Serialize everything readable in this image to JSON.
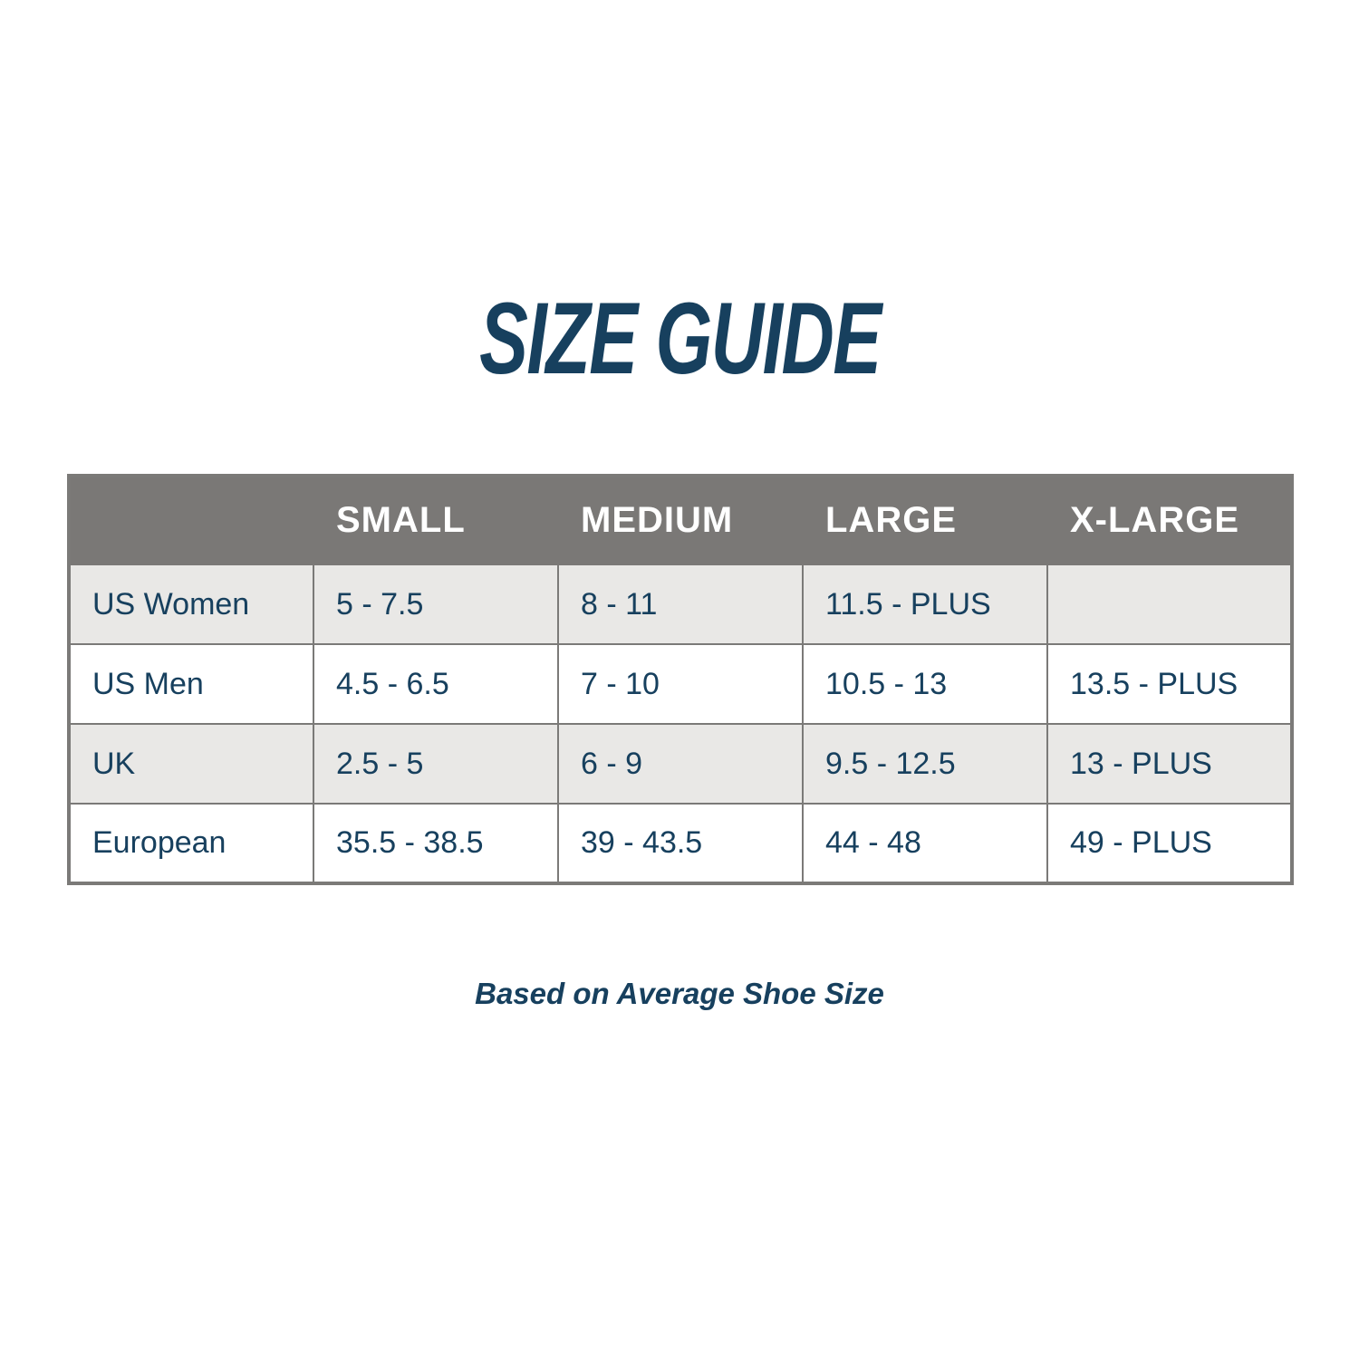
{
  "title": "SIZE GUIDE",
  "footer_note": "Based on Average Shoe Size",
  "colors": {
    "title_text": "#17405e",
    "header_background": "#7a7876",
    "header_text": "#ffffff",
    "row_alt_background": "#e9e8e6",
    "row_background": "#ffffff",
    "cell_text": "#17405e",
    "border": "#7b7a78",
    "page_background": "#ffffff"
  },
  "table": {
    "columns": [
      "",
      "SMALL",
      "MEDIUM",
      "LARGE",
      "X-LARGE"
    ],
    "rows": [
      {
        "label": "US Women",
        "values": [
          "5 - 7.5",
          "8 - 11",
          "11.5 - PLUS",
          ""
        ]
      },
      {
        "label": "US Men",
        "values": [
          "4.5 - 6.5",
          "7 - 10",
          "10.5 - 13",
          "13.5 - PLUS"
        ]
      },
      {
        "label": "UK",
        "values": [
          "2.5 - 5",
          "6 - 9",
          "9.5 - 12.5",
          "13 - PLUS"
        ]
      },
      {
        "label": "European",
        "values": [
          "35.5 - 38.5",
          "39 - 43.5",
          "44 - 48",
          "49 - PLUS"
        ]
      }
    ]
  }
}
